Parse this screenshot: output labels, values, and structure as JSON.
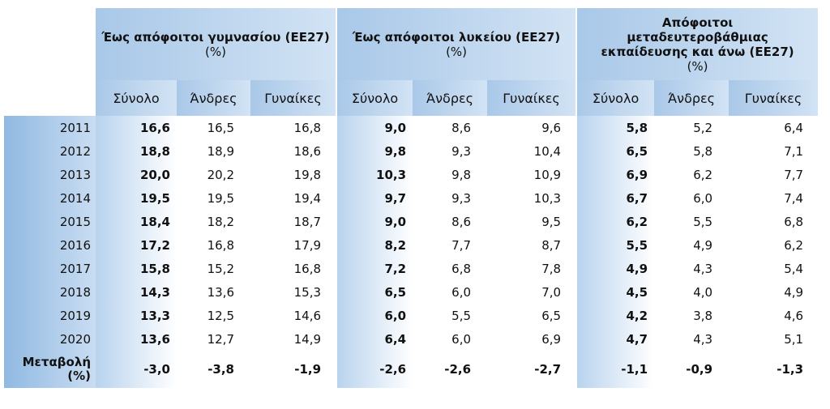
{
  "groups": [
    {
      "title": "Έως απόφοιτοι γυμνασίου (ΕΕ27)",
      "unit": "(%)"
    },
    {
      "title": "Έως απόφοιτοι λυκείου (ΕΕ27)",
      "unit": "(%)"
    },
    {
      "title": "Απόφοιτοι μεταδευτεροβάθμιας εκπαίδευσης και άνω (ΕΕ27)",
      "unit": "(%)"
    }
  ],
  "subheaders": [
    "Σύνολο",
    "Άνδρες",
    "Γυναίκες"
  ],
  "rows": [
    {
      "year": "2011",
      "values": [
        "16,6",
        "16,5",
        "16,8",
        "9,0",
        "8,6",
        "9,6",
        "5,8",
        "5,2",
        "6,4"
      ]
    },
    {
      "year": "2012",
      "values": [
        "18,8",
        "18,9",
        "18,6",
        "9,8",
        "9,3",
        "10,4",
        "6,5",
        "5,8",
        "7,1"
      ]
    },
    {
      "year": "2013",
      "values": [
        "20,0",
        "20,2",
        "19,8",
        "10,3",
        "9,8",
        "10,9",
        "6,9",
        "6,2",
        "7,7"
      ]
    },
    {
      "year": "2014",
      "values": [
        "19,5",
        "19,5",
        "19,4",
        "9,7",
        "9,3",
        "10,3",
        "6,7",
        "6,0",
        "7,4"
      ]
    },
    {
      "year": "2015",
      "values": [
        "18,4",
        "18,2",
        "18,7",
        "9,0",
        "8,6",
        "9,5",
        "6,2",
        "5,5",
        "6,8"
      ]
    },
    {
      "year": "2016",
      "values": [
        "17,2",
        "16,8",
        "17,9",
        "8,2",
        "7,7",
        "8,7",
        "5,5",
        "4,9",
        "6,2"
      ]
    },
    {
      "year": "2017",
      "values": [
        "15,8",
        "15,2",
        "16,8",
        "7,2",
        "6,8",
        "7,8",
        "4,9",
        "4,3",
        "5,4"
      ]
    },
    {
      "year": "2018",
      "values": [
        "14,3",
        "13,6",
        "15,3",
        "6,5",
        "6,0",
        "7,0",
        "4,5",
        "4,0",
        "4,9"
      ]
    },
    {
      "year": "2019",
      "values": [
        "13,3",
        "12,5",
        "14,6",
        "6,0",
        "5,5",
        "6,5",
        "4,2",
        "3,8",
        "4,6"
      ]
    },
    {
      "year": "2020",
      "values": [
        "13,6",
        "12,7",
        "14,9",
        "6,4",
        "6,0",
        "6,9",
        "4,7",
        "4,3",
        "5,1"
      ]
    }
  ],
  "change": {
    "label_line1": "Μεταβολή",
    "label_line2": "(%)",
    "values": [
      "-3,0",
      "-3,8",
      "-1,9",
      "-2,6",
      "-2,6",
      "-2,7",
      "-1,1",
      "-0,9",
      "-1,3"
    ]
  }
}
